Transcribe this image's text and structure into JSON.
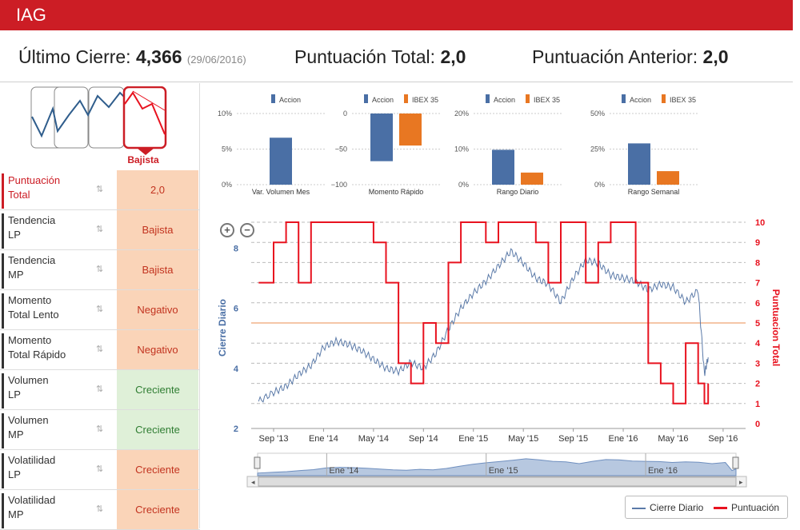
{
  "header": {
    "title": "IAG"
  },
  "summary": {
    "last_close_label": "Último Cierre:",
    "last_close_value": "4,366",
    "last_close_date": "(29/06/2016)",
    "total_score_label": "Puntuación Total:",
    "total_score_value": "2,0",
    "prev_score_label": "Puntuación Anterior:",
    "prev_score_value": "2,0"
  },
  "trend_indicator": {
    "label": "Bajista"
  },
  "colors": {
    "brand_red": "#cc1d25",
    "accion_blue": "#4a6fa5",
    "ibex_orange": "#e87722",
    "price_line": "#5b7aa8",
    "score_line": "#e8121f",
    "threshold": "#f2b48a"
  },
  "indicators": [
    {
      "label_1": "Puntuación",
      "label_2": "Total",
      "value": "2,0",
      "status": "neg",
      "sort_icon": "sort-icon"
    },
    {
      "label_1": "Tendencia",
      "label_2": "LP",
      "value": "Bajista",
      "status": "neg"
    },
    {
      "label_1": "Tendencia",
      "label_2": "MP",
      "value": "Bajista",
      "status": "neg"
    },
    {
      "label_1": "Momento",
      "label_2": "Total Lento",
      "value": "Negativo",
      "status": "neg"
    },
    {
      "label_1": "Momento",
      "label_2": "Total Rápido",
      "value": "Negativo",
      "status": "neg"
    },
    {
      "label_1": "Volumen",
      "label_2": "LP",
      "value": "Creciente",
      "status": "pos"
    },
    {
      "label_1": "Volumen",
      "label_2": "MP",
      "value": "Creciente",
      "status": "pos"
    },
    {
      "label_1": "Volatilidad",
      "label_2": "LP",
      "value": "Creciente",
      "status": "neg"
    },
    {
      "label_1": "Volatilidad",
      "label_2": "MP",
      "value": "Creciente",
      "status": "neg"
    }
  ],
  "legend": {
    "cierre": "Cierre Diario",
    "puntuacion": "Puntuación"
  },
  "chart_data": [
    {
      "type": "bar",
      "title": "Var. Volumen Mes",
      "legend": [
        "Accion"
      ],
      "yticks": [
        "10%",
        "5%",
        "0%"
      ],
      "ylim": [
        0,
        10
      ],
      "series": [
        {
          "name": "Accion",
          "values": [
            6.6
          ]
        }
      ]
    },
    {
      "type": "bar",
      "title": "Momento Rápido",
      "legend": [
        "Accion",
        "IBEX 35"
      ],
      "yticks": [
        "0",
        "−50",
        "−100"
      ],
      "ylim": [
        -100,
        0
      ],
      "series": [
        {
          "name": "Accion",
          "values": [
            -67
          ]
        },
        {
          "name": "IBEX 35",
          "values": [
            -45
          ]
        }
      ]
    },
    {
      "type": "bar",
      "title": "Rango Diario",
      "legend": [
        "Accion",
        "IBEX 35"
      ],
      "yticks": [
        "20%",
        "10%",
        "0%"
      ],
      "ylim": [
        0,
        20
      ],
      "series": [
        {
          "name": "Accion",
          "values": [
            9.8
          ]
        },
        {
          "name": "IBEX 35",
          "values": [
            3.4
          ]
        }
      ]
    },
    {
      "type": "bar",
      "title": "Rango Semanal",
      "legend": [
        "Accion",
        "IBEX 35"
      ],
      "yticks": [
        "50%",
        "25%",
        "0%"
      ],
      "ylim": [
        0,
        50
      ],
      "series": [
        {
          "name": "Accion",
          "values": [
            29
          ]
        },
        {
          "name": "IBEX 35",
          "values": [
            9.5
          ]
        }
      ]
    },
    {
      "type": "line",
      "title": "",
      "ylabel_left": "Cierre Diario",
      "ylabel_right": "Puntuacion Total",
      "left_ylim": [
        2,
        8.7
      ],
      "left_ticks": [
        "2",
        "4",
        "6",
        "8"
      ],
      "right_ylim": [
        0,
        10
      ],
      "right_ticks": [
        "0",
        "1",
        "2",
        "3",
        "4",
        "5",
        "6",
        "7",
        "8",
        "9",
        "10"
      ],
      "x_ticks": [
        "Sep '13",
        "Ene '14",
        "May '14",
        "Sep '14",
        "Ene '15",
        "May '15",
        "Sep '15",
        "Ene '16",
        "May '16",
        "Sep '16"
      ],
      "x_tick_months": [
        0,
        4,
        8,
        12,
        16,
        20,
        24,
        28,
        32,
        36
      ],
      "threshold": 5,
      "navigator_labels": [
        "Ene '14",
        "Ene '15",
        "Ene '16"
      ],
      "series": [
        {
          "name": "Cierre Diario",
          "axis": "left",
          "x": [
            -1.2,
            0,
            1,
            2,
            3,
            4,
            5,
            6,
            7,
            8,
            9,
            10,
            11,
            12,
            13,
            14,
            15,
            16,
            17,
            18,
            19,
            20,
            21,
            22,
            23,
            24,
            25,
            26,
            27,
            28,
            29,
            30,
            31,
            32,
            33,
            34,
            34.5,
            34.8
          ],
          "y": [
            2.9,
            3.2,
            3.4,
            3.8,
            4.1,
            4.7,
            4.9,
            4.8,
            4.6,
            4.3,
            4.0,
            3.9,
            4.2,
            4.0,
            4.5,
            5.3,
            6.0,
            6.5,
            6.9,
            7.4,
            7.9,
            7.5,
            7.0,
            6.8,
            6.2,
            7.0,
            7.6,
            7.5,
            7.1,
            7.0,
            6.9,
            6.6,
            6.8,
            6.7,
            6.2,
            6.6,
            3.8,
            4.366
          ]
        },
        {
          "name": "Puntuación",
          "axis": "right",
          "x": [
            -1.2,
            0,
            1,
            2,
            3,
            4,
            5,
            6,
            7,
            8,
            9,
            10,
            11,
            12,
            13,
            14,
            15,
            16,
            17,
            18,
            19,
            20,
            21,
            22,
            23,
            24,
            25,
            26,
            27,
            28,
            29,
            30,
            31,
            32,
            33,
            34,
            34.5,
            34.8
          ],
          "y": [
            7,
            9,
            10,
            7,
            10,
            10,
            10,
            10,
            10,
            9,
            7,
            3,
            2,
            5,
            4,
            8,
            10,
            10,
            9,
            10,
            10,
            10,
            9,
            7,
            10,
            10,
            7,
            9,
            10,
            10,
            7,
            3,
            2,
            1,
            4,
            2,
            1,
            2
          ]
        }
      ]
    }
  ]
}
